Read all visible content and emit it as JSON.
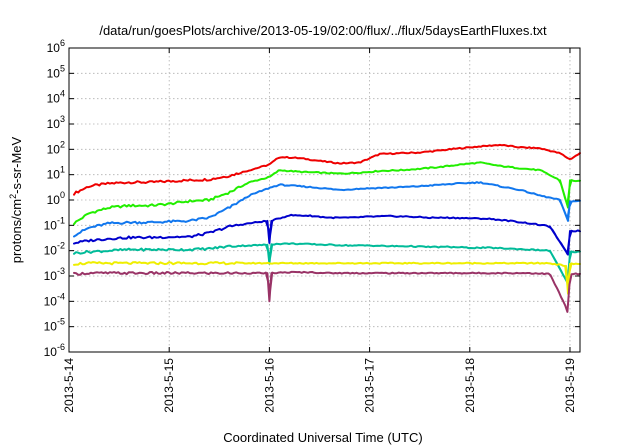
{
  "chart_data": {
    "type": "line",
    "title": "/data/run/goesPlots/archive/2013-05-19/02:00/flux/../flux/5daysEarthFluxes.txt",
    "xlabel": "Coordinated Universal Time (UTC)",
    "ylabel": {
      "prefix": "protons/cm",
      "sup": "2",
      "suffix": "-s-sr-MeV"
    },
    "yscale": "log",
    "ylim": [
      1e-06,
      1000000.0
    ],
    "xlim": [
      0,
      5.1
    ],
    "x_unit": "days since 2013-5-14 00:00 UTC",
    "grid": true,
    "legend": "none",
    "y_ticks": [
      {
        "base": "10",
        "exp": "-6",
        "value": 1e-06
      },
      {
        "base": "10",
        "exp": "-5",
        "value": 1e-05
      },
      {
        "base": "10",
        "exp": "-4",
        "value": 0.0001
      },
      {
        "base": "10",
        "exp": "-3",
        "value": 0.001
      },
      {
        "base": "10",
        "exp": "-2",
        "value": 0.01
      },
      {
        "base": "10",
        "exp": "-1",
        "value": 0.1
      },
      {
        "base": "10",
        "exp": "0",
        "value": 1
      },
      {
        "base": "10",
        "exp": "1",
        "value": 10
      },
      {
        "base": "10",
        "exp": "2",
        "value": 100
      },
      {
        "base": "10",
        "exp": "3",
        "value": 1000
      },
      {
        "base": "10",
        "exp": "4",
        "value": 10000
      },
      {
        "base": "10",
        "exp": "5",
        "value": 100000
      },
      {
        "base": "10",
        "exp": "6",
        "value": 1000000
      }
    ],
    "x_ticks": [
      {
        "label": "2013-5-14",
        "value": 0
      },
      {
        "label": "2013-5-15",
        "value": 1
      },
      {
        "label": "2013-5-16",
        "value": 2
      },
      {
        "label": "2013-5-17",
        "value": 3
      },
      {
        "label": "2013-5-18",
        "value": 4
      },
      {
        "label": "2013-5-19",
        "value": 5
      }
    ],
    "series": [
      {
        "color": "#ee0000",
        "x": [
          0.05,
          0.2,
          0.4,
          0.6,
          0.8,
          1.0,
          1.2,
          1.4,
          1.6,
          1.8,
          2.0,
          2.1,
          2.3,
          2.5,
          2.7,
          2.9,
          3.1,
          3.3,
          3.5,
          3.7,
          3.9,
          4.1,
          4.3,
          4.5,
          4.7,
          4.9,
          5.0,
          5.1
        ],
        "y": [
          1.8,
          3.5,
          4.5,
          5.0,
          5.0,
          5.5,
          6.0,
          6.5,
          9.0,
          15,
          25,
          50,
          45,
          35,
          28,
          30,
          65,
          70,
          75,
          90,
          110,
          130,
          150,
          120,
          110,
          70,
          40,
          70
        ]
      },
      {
        "color": "#22ee00",
        "x": [
          0.05,
          0.2,
          0.4,
          0.6,
          0.8,
          1.0,
          1.2,
          1.4,
          1.6,
          1.8,
          2.0,
          2.1,
          2.3,
          2.5,
          2.7,
          2.9,
          3.1,
          3.3,
          3.5,
          3.7,
          3.9,
          4.1,
          4.3,
          4.5,
          4.7,
          4.9,
          4.98,
          5.0,
          5.1
        ],
        "y": [
          0.12,
          0.3,
          0.5,
          0.6,
          0.6,
          0.7,
          0.9,
          1.0,
          2.0,
          5.0,
          8.0,
          15,
          13,
          12,
          11,
          12,
          14,
          15,
          17,
          20,
          25,
          30,
          22,
          18,
          15,
          6.0,
          0.5,
          6.0,
          5.5
        ]
      },
      {
        "color": "#1177ee",
        "x": [
          0.05,
          0.2,
          0.4,
          0.6,
          0.8,
          1.0,
          1.2,
          1.4,
          1.6,
          1.8,
          2.0,
          2.1,
          2.3,
          2.5,
          2.7,
          2.9,
          3.1,
          3.3,
          3.5,
          3.7,
          3.9,
          4.1,
          4.3,
          4.5,
          4.7,
          4.9,
          4.98,
          5.0,
          5.1
        ],
        "y": [
          0.04,
          0.08,
          0.12,
          0.13,
          0.13,
          0.14,
          0.15,
          0.2,
          0.5,
          1.5,
          3.0,
          4.0,
          3.5,
          3.0,
          2.5,
          2.8,
          3.0,
          3.2,
          3.5,
          4.0,
          4.5,
          5.0,
          3.5,
          2.5,
          1.5,
          1.0,
          0.15,
          0.9,
          0.9
        ]
      },
      {
        "color": "#0000cc",
        "x": [
          0.05,
          0.2,
          0.4,
          0.6,
          0.8,
          1.0,
          1.2,
          1.4,
          1.6,
          1.8,
          1.98,
          2.0,
          2.02,
          2.2,
          2.4,
          2.6,
          2.8,
          3.0,
          3.2,
          3.4,
          3.6,
          3.8,
          4.0,
          4.2,
          4.4,
          4.6,
          4.8,
          4.98,
          5.0,
          5.1
        ],
        "y": [
          0.02,
          0.025,
          0.03,
          0.033,
          0.033,
          0.035,
          0.035,
          0.05,
          0.09,
          0.12,
          0.15,
          0.02,
          0.15,
          0.25,
          0.24,
          0.2,
          0.2,
          0.22,
          0.23,
          0.22,
          0.2,
          0.2,
          0.19,
          0.18,
          0.15,
          0.12,
          0.09,
          0.007,
          0.06,
          0.06
        ]
      },
      {
        "color": "#00bb99",
        "x": [
          0.05,
          0.2,
          0.4,
          0.6,
          0.8,
          1.0,
          1.2,
          1.4,
          1.6,
          1.8,
          1.98,
          2.0,
          2.02,
          2.2,
          2.4,
          2.6,
          2.8,
          3.0,
          3.2,
          3.4,
          3.6,
          3.8,
          4.0,
          4.2,
          4.4,
          4.6,
          4.8,
          4.98,
          5.0,
          5.1
        ],
        "y": [
          0.008,
          0.009,
          0.01,
          0.011,
          0.011,
          0.011,
          0.011,
          0.012,
          0.015,
          0.016,
          0.017,
          0.003,
          0.018,
          0.019,
          0.018,
          0.017,
          0.016,
          0.016,
          0.015,
          0.015,
          0.014,
          0.014,
          0.013,
          0.013,
          0.012,
          0.011,
          0.01,
          0.0005,
          0.009,
          0.009
        ]
      },
      {
        "color": "#eeee00",
        "x": [
          0.05,
          0.2,
          0.4,
          0.6,
          0.8,
          1.0,
          1.2,
          1.4,
          1.6,
          1.8,
          2.0,
          2.2,
          2.4,
          2.6,
          2.8,
          3.0,
          3.2,
          3.4,
          3.6,
          3.8,
          4.0,
          4.2,
          4.4,
          4.6,
          4.8,
          4.96,
          4.98,
          5.0,
          5.1
        ],
        "y": [
          0.003,
          0.0032,
          0.0032,
          0.0032,
          0.0032,
          0.0032,
          0.0032,
          0.0032,
          0.0032,
          0.0032,
          0.0032,
          0.0032,
          0.0032,
          0.0032,
          0.0032,
          0.0032,
          0.0032,
          0.0032,
          0.0032,
          0.0032,
          0.0032,
          0.0032,
          0.0032,
          0.0032,
          0.0032,
          0.0025,
          0.0002,
          0.003,
          0.003
        ]
      },
      {
        "color": "#993366",
        "x": [
          0.05,
          0.2,
          0.4,
          0.6,
          0.8,
          1.0,
          1.2,
          1.4,
          1.6,
          1.8,
          1.98,
          2.0,
          2.02,
          2.2,
          2.4,
          2.6,
          2.8,
          3.0,
          3.2,
          3.4,
          3.6,
          3.8,
          4.0,
          4.2,
          4.4,
          4.6,
          4.8,
          4.96,
          4.98,
          5.0,
          5.1
        ],
        "y": [
          0.0012,
          0.0013,
          0.0013,
          0.0013,
          0.0013,
          0.0013,
          0.0013,
          0.0013,
          0.0013,
          0.0013,
          0.0013,
          0.0001,
          0.0013,
          0.0014,
          0.0014,
          0.0013,
          0.0013,
          0.0013,
          0.0013,
          0.0013,
          0.0013,
          0.0013,
          0.0013,
          0.0013,
          0.0013,
          0.0013,
          0.0012,
          6e-05,
          3e-05,
          0.0012,
          0.0012
        ]
      }
    ]
  }
}
